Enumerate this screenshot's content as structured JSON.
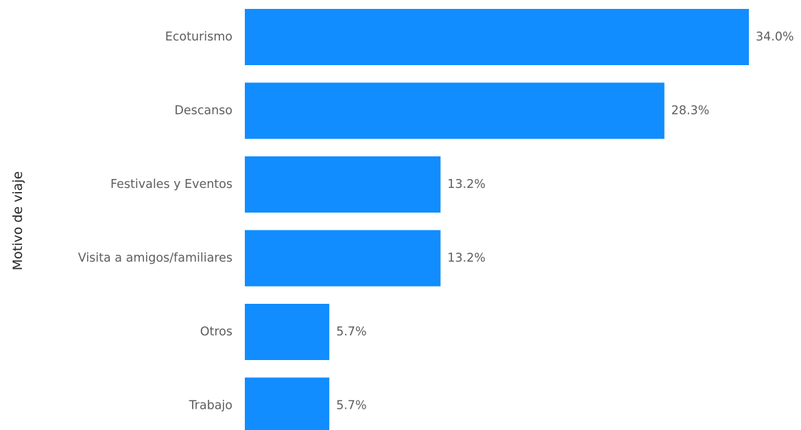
{
  "chart_data": {
    "type": "bar",
    "orientation": "horizontal",
    "ylabel": "Motivo de viaje",
    "categories": [
      "Ecoturismo",
      "Descanso",
      "Festivales y Eventos",
      "Visita a amigos/familiares",
      "Otros",
      "Trabajo"
    ],
    "values": [
      34.0,
      28.3,
      13.2,
      13.2,
      5.7,
      5.7
    ],
    "value_labels": [
      "34.0%",
      "28.3%",
      "13.2%",
      "13.2%",
      "5.7%",
      "5.7%"
    ],
    "unit": "%",
    "grid": false,
    "legend": "none",
    "bar_color": "#118DFF"
  }
}
